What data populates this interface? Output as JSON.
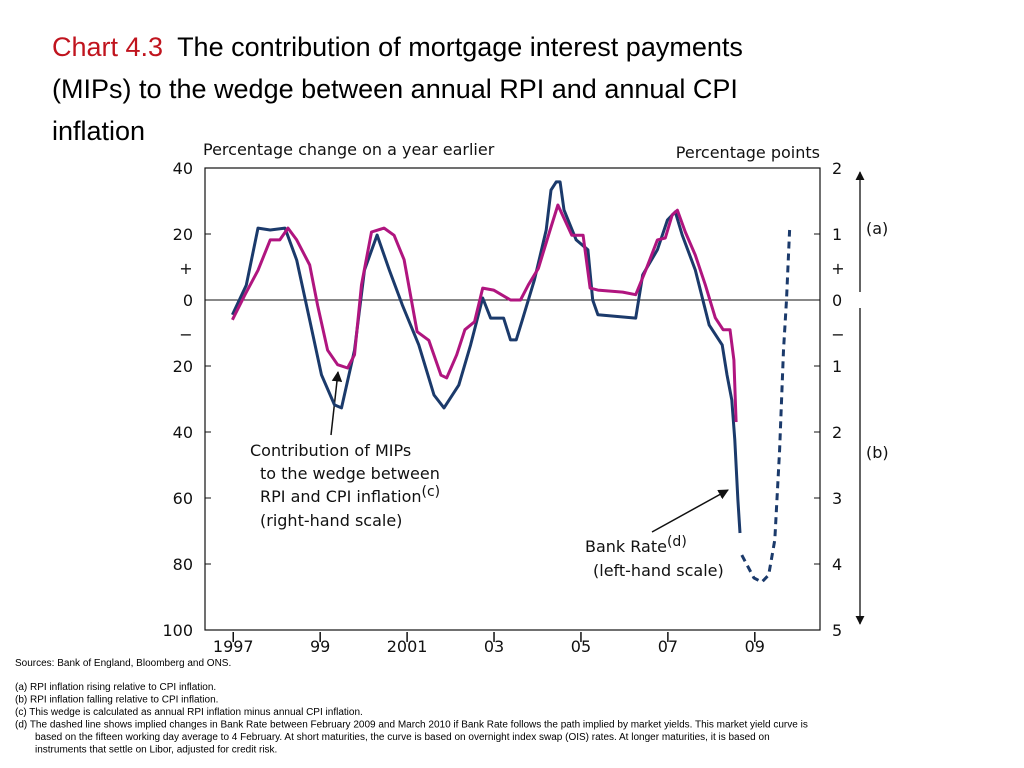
{
  "chart_data": {
    "type": "line",
    "title_prefix": "Chart 4.3",
    "title_lines": [
      "The contribution of mortgage interest payments",
      "(MIPs) to the wedge between annual RPI and annual CPI",
      "inflation"
    ],
    "y_axis_label": "Percentage change on a year earlier",
    "y2_axis_label": "Percentage points",
    "xlim": [
      1996.35,
      2010.5
    ],
    "xticks": [
      {
        "value": 1997,
        "label": "1997"
      },
      {
        "value": 1999,
        "label": "99"
      },
      {
        "value": 2001,
        "label": "2001"
      },
      {
        "value": 2003,
        "label": "03"
      },
      {
        "value": 2005,
        "label": "05"
      },
      {
        "value": 2007,
        "label": "07"
      },
      {
        "value": 2009,
        "label": "09"
      }
    ],
    "ylim": [
      -100,
      40
    ],
    "yticks": [
      40,
      20,
      0,
      {
        "value": -20,
        "label": "20"
      },
      {
        "value": -40,
        "label": "40"
      },
      {
        "value": -60,
        "label": "60"
      },
      {
        "value": -80,
        "label": "80"
      },
      {
        "value": -100,
        "label": "100"
      }
    ],
    "y2lim": [
      -5,
      2
    ],
    "y2ticks": [
      2,
      1,
      0,
      {
        "value": -1,
        "label": "1"
      },
      {
        "value": -2,
        "label": "2"
      },
      {
        "value": -3,
        "label": "3"
      },
      {
        "value": -4,
        "label": "4"
      },
      {
        "value": -5,
        "label": "5"
      }
    ],
    "sign_plus": "+",
    "sign_minus": "−",
    "zero_line": true,
    "series": [
      {
        "color": "#1b3a6b",
        "axis": "y",
        "dashed_from": 2008.7,
        "x": [
          1996.98,
          1997.3,
          1997.57,
          1997.85,
          1998.19,
          1998.46,
          1998.76,
          1999.03,
          1999.33,
          1999.49,
          1999.79,
          2000.02,
          2000.31,
          2000.59,
          2000.89,
          2001.27,
          2001.62,
          2001.85,
          2002.19,
          2002.46,
          2002.74,
          2002.92,
          2003.22,
          2003.38,
          2003.51,
          2003.65,
          2003.93,
          2004.2,
          2004.31,
          2004.43,
          2004.52,
          2004.61,
          2004.89,
          2005.16,
          2005.27,
          2005.39,
          2006.26,
          2006.42,
          2006.76,
          2006.99,
          2007.17,
          2007.33,
          2007.63,
          2007.95,
          2008.25,
          2008.36,
          2008.47,
          2008.54,
          2008.61,
          2008.66,
          2008.7,
          2008.98,
          2009.16,
          2009.32,
          2009.46,
          2009.57,
          2009.66,
          2009.73,
          2009.8
        ],
        "values": [
          -4.5,
          4.5,
          21.8,
          21.2,
          21.8,
          12.1,
          -6.1,
          -22.7,
          -31.8,
          -32.7,
          -15.2,
          9.1,
          19.7,
          9.1,
          -1.5,
          -13.6,
          -28.8,
          -32.7,
          -25.8,
          -13.6,
          0.6,
          -5.5,
          -5.5,
          -12.1,
          -12.1,
          -6.1,
          6.1,
          21.2,
          33.3,
          35.8,
          35.8,
          27.3,
          18.2,
          15.2,
          0,
          -4.5,
          -5.5,
          7.6,
          15.2,
          24.2,
          26.7,
          19.7,
          9.1,
          -7.6,
          -13.6,
          -22.7,
          -30.3,
          -42.4,
          -60.6,
          -70.6,
          -77.3,
          -84.2,
          -85.5,
          -83.3,
          -72.7,
          -45.5,
          -15.2,
          0,
          21.2
        ]
      },
      {
        "color": "#b0157f",
        "axis": "y2",
        "x": [
          1996.98,
          1997.27,
          1997.57,
          1997.85,
          1998.07,
          1998.26,
          1998.46,
          1998.76,
          1998.94,
          1999.17,
          1999.4,
          1999.63,
          1999.79,
          1999.95,
          2000.18,
          2000.47,
          2000.7,
          2000.93,
          2001.23,
          2001.5,
          2001.78,
          2001.91,
          2002.14,
          2002.33,
          2002.55,
          2002.74,
          2002.99,
          2003.38,
          2003.61,
          2003.79,
          2004.02,
          2004.29,
          2004.47,
          2004.61,
          2004.79,
          2005.05,
          2005.21,
          2005.39,
          2005.96,
          2006.26,
          2006.49,
          2006.76,
          2006.94,
          2007.1,
          2007.22,
          2007.4,
          2007.63,
          2007.86,
          2008.09,
          2008.27,
          2008.43,
          2008.52,
          2008.57
        ],
        "values": [
          -0.3,
          0.08,
          0.45,
          0.91,
          0.91,
          1.09,
          0.91,
          0.53,
          -0.08,
          -0.76,
          -0.98,
          -1.03,
          -0.83,
          0.23,
          1.03,
          1.09,
          0.98,
          0.61,
          -0.48,
          -0.61,
          -1.14,
          -1.18,
          -0.83,
          -0.45,
          -0.33,
          0.18,
          0.15,
          0,
          0,
          0.23,
          0.48,
          1.06,
          1.44,
          1.24,
          0.98,
          0.98,
          0.18,
          0.15,
          0.12,
          0.08,
          0.45,
          0.91,
          0.94,
          1.29,
          1.36,
          1.03,
          0.68,
          0.23,
          -0.27,
          -0.45,
          -0.45,
          -0.91,
          -1.85
        ]
      }
    ],
    "annotations": [
      {
        "lines": [
          "Contribution of MIPs",
          "to the wedge between",
          "RPI and CPI inflation",
          "(right-hand scale)"
        ],
        "sup": "(c)"
      },
      {
        "lines": [
          "Bank Rate",
          "(left-hand scale)"
        ],
        "sup": "(d)"
      }
    ],
    "side_labels": [
      "(a)",
      "(b)"
    ],
    "footnotes": [
      "Sources:  Bank of England, Bloomberg and ONS.",
      "(a) RPI inflation rising relative to CPI inflation.",
      "(b) RPI inflation falling relative to CPI inflation.",
      "(c) This wedge is calculated as annual RPI inflation minus annual CPI inflation.",
      "(d) The dashed line shows implied changes in Bank Rate between February 2009 and March 2010 if Bank Rate follows the path implied by market yields.  This market yield curve is",
      "based on the fifteen working day average to 4 February.  At short maturities, the curve is based on overnight index swap (OIS) rates.  At longer maturities, it is based on",
      "instruments that settle on Libor, adjusted for credit risk."
    ]
  }
}
